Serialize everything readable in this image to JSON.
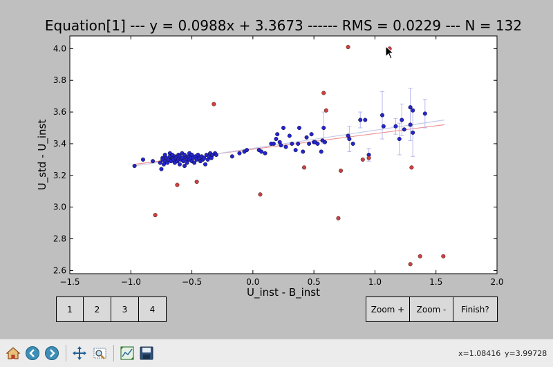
{
  "chart_data": {
    "type": "scatter",
    "title": "Equation[1] --- y = 0.0988x + 3.3673 ------ RMS = 0.0229 --- N = 132",
    "xlabel": "U_inst - B_inst",
    "ylabel": "U_std - U_inst",
    "xlim": [
      -1.5,
      2.0
    ],
    "ylim": [
      2.58,
      4.08
    ],
    "xticks": [
      "−1.5",
      "−1.0",
      "−0.5",
      "0.0",
      "0.5",
      "1.0",
      "1.5",
      "2.0"
    ],
    "xtick_values": [
      -1.5,
      -1.0,
      -0.5,
      0.0,
      0.5,
      1.0,
      1.5,
      2.0
    ],
    "yticks": [
      "2.6",
      "2.8",
      "3.0",
      "3.2",
      "3.4",
      "3.6",
      "3.8",
      "4.0"
    ],
    "ytick_values": [
      2.6,
      2.8,
      3.0,
      3.2,
      3.4,
      3.6,
      3.8,
      4.0
    ],
    "grid": false,
    "fit_lines": [
      {
        "color": "#ee9090",
        "x": [
          -0.97,
          1.57
        ],
        "y": [
          3.27,
          3.52
        ]
      },
      {
        "color": "#c4c8e8",
        "x": [
          -0.97,
          1.57
        ],
        "y": [
          3.26,
          3.55
        ]
      }
    ],
    "series": [
      {
        "color": "#2525cc",
        "points": [
          [
            -0.97,
            3.26
          ],
          [
            -0.9,
            3.3
          ],
          [
            -0.82,
            3.29
          ],
          [
            -0.76,
            3.28
          ],
          [
            -0.75,
            3.24
          ],
          [
            -0.74,
            3.31
          ],
          [
            -0.74,
            3.3
          ],
          [
            -0.73,
            3.27
          ],
          [
            -0.72,
            3.29
          ],
          [
            -0.72,
            3.33
          ],
          [
            -0.71,
            3.31
          ],
          [
            -0.7,
            3.28
          ],
          [
            -0.69,
            3.3
          ],
          [
            -0.68,
            3.34
          ],
          [
            -0.68,
            3.32
          ],
          [
            -0.67,
            3.29
          ],
          [
            -0.66,
            3.31
          ],
          [
            -0.66,
            3.33
          ],
          [
            -0.65,
            3.3
          ],
          [
            -0.64,
            3.32
          ],
          [
            -0.64,
            3.28
          ],
          [
            -0.63,
            3.31
          ],
          [
            -0.62,
            3.29
          ],
          [
            -0.61,
            3.33
          ],
          [
            -0.61,
            3.3
          ],
          [
            -0.6,
            3.27
          ],
          [
            -0.6,
            3.32
          ],
          [
            -0.59,
            3.3
          ],
          [
            -0.58,
            3.34
          ],
          [
            -0.58,
            3.31
          ],
          [
            -0.57,
            3.29
          ],
          [
            -0.56,
            3.33
          ],
          [
            -0.56,
            3.26
          ],
          [
            -0.55,
            3.31
          ],
          [
            -0.54,
            3.3
          ],
          [
            -0.54,
            3.28
          ],
          [
            -0.53,
            3.32
          ],
          [
            -0.52,
            3.34
          ],
          [
            -0.52,
            3.3
          ],
          [
            -0.51,
            3.31
          ],
          [
            -0.5,
            3.29
          ],
          [
            -0.5,
            3.33
          ],
          [
            -0.49,
            3.31
          ],
          [
            -0.48,
            3.28
          ],
          [
            -0.47,
            3.32
          ],
          [
            -0.46,
            3.3
          ],
          [
            -0.45,
            3.33
          ],
          [
            -0.44,
            3.31
          ],
          [
            -0.43,
            3.29
          ],
          [
            -0.42,
            3.32
          ],
          [
            -0.41,
            3.3
          ],
          [
            -0.4,
            3.31
          ],
          [
            -0.39,
            3.27
          ],
          [
            -0.38,
            3.33
          ],
          [
            -0.37,
            3.3
          ],
          [
            -0.36,
            3.32
          ],
          [
            -0.35,
            3.34
          ],
          [
            -0.34,
            3.31
          ],
          [
            -0.33,
            3.33
          ],
          [
            -0.31,
            3.34
          ],
          [
            -0.3,
            3.33
          ],
          [
            -0.17,
            3.32
          ],
          [
            -0.11,
            3.34
          ],
          [
            -0.07,
            3.35
          ],
          [
            -0.05,
            3.36
          ],
          [
            0.05,
            3.36
          ],
          [
            0.07,
            3.35
          ],
          [
            0.1,
            3.34
          ],
          [
            0.15,
            3.4
          ],
          [
            0.17,
            3.4
          ],
          [
            0.19,
            3.43
          ],
          [
            0.2,
            3.46
          ],
          [
            0.22,
            3.41
          ],
          [
            0.23,
            3.39
          ],
          [
            0.25,
            3.5
          ],
          [
            0.27,
            3.38
          ],
          [
            0.3,
            3.45
          ],
          [
            0.32,
            3.4
          ],
          [
            0.35,
            3.36
          ],
          [
            0.37,
            3.4
          ],
          [
            0.38,
            3.5
          ],
          [
            0.41,
            3.35
          ],
          [
            0.44,
            3.44
          ],
          [
            0.46,
            3.4
          ],
          [
            0.48,
            3.46
          ],
          [
            0.5,
            3.41
          ],
          [
            0.51,
            3.41
          ],
          [
            0.53,
            3.4
          ],
          [
            0.56,
            3.35
          ],
          [
            0.57,
            3.42
          ],
          [
            0.58,
            3.5
          ],
          [
            0.59,
            3.41
          ],
          [
            0.78,
            3.45
          ],
          [
            0.79,
            3.43
          ],
          [
            0.82,
            3.4
          ],
          [
            0.88,
            3.55
          ],
          [
            0.92,
            3.55
          ],
          [
            0.95,
            3.33
          ],
          [
            1.06,
            3.58
          ],
          [
            1.07,
            3.51
          ],
          [
            1.17,
            3.51
          ],
          [
            1.2,
            3.43
          ],
          [
            1.22,
            3.55
          ],
          [
            1.24,
            3.49
          ],
          [
            1.29,
            3.52
          ],
          [
            1.29,
            3.63
          ],
          [
            1.31,
            3.47
          ],
          [
            1.31,
            3.61
          ],
          [
            1.41,
            3.59
          ]
        ],
        "error_bars": [
          [
            0.58,
            3.5,
            0.1
          ],
          [
            0.79,
            3.43,
            0.08
          ],
          [
            0.88,
            3.55,
            0.05
          ],
          [
            1.06,
            3.58,
            0.15
          ],
          [
            1.17,
            3.51,
            0.05
          ],
          [
            1.2,
            3.43,
            0.1
          ],
          [
            1.22,
            3.55,
            0.1
          ],
          [
            1.29,
            3.52,
            0.1
          ],
          [
            1.29,
            3.63,
            0.12
          ],
          [
            1.31,
            3.47,
            0.15
          ],
          [
            1.41,
            3.59,
            0.09
          ],
          [
            0.95,
            3.33,
            0.04
          ]
        ]
      },
      {
        "color": "#d04040",
        "points": [
          [
            -0.8,
            2.95
          ],
          [
            -0.62,
            3.14
          ],
          [
            -0.46,
            3.16
          ],
          [
            -0.32,
            3.65
          ],
          [
            0.06,
            3.08
          ],
          [
            0.42,
            3.25
          ],
          [
            0.58,
            3.72
          ],
          [
            0.6,
            3.61
          ],
          [
            0.7,
            2.93
          ],
          [
            0.72,
            3.23
          ],
          [
            0.78,
            4.01
          ],
          [
            0.9,
            3.3
          ],
          [
            0.95,
            3.31
          ],
          [
            1.12,
            4.0
          ],
          [
            1.29,
            2.64
          ],
          [
            1.3,
            3.25
          ],
          [
            1.37,
            2.69
          ],
          [
            1.56,
            2.69
          ]
        ]
      }
    ]
  },
  "buttons_left": [
    "1",
    "2",
    "3",
    "4"
  ],
  "buttons_right": [
    "Zoom +",
    "Zoom -",
    "Finish?"
  ],
  "toolbar": {
    "icons": [
      "home-icon",
      "back-icon",
      "forward-icon",
      "pan-icon",
      "zoom-rect-icon",
      "subplots-icon",
      "save-icon"
    ],
    "x_readout": "x=1.08416",
    "y_readout": "y=3.99728"
  }
}
